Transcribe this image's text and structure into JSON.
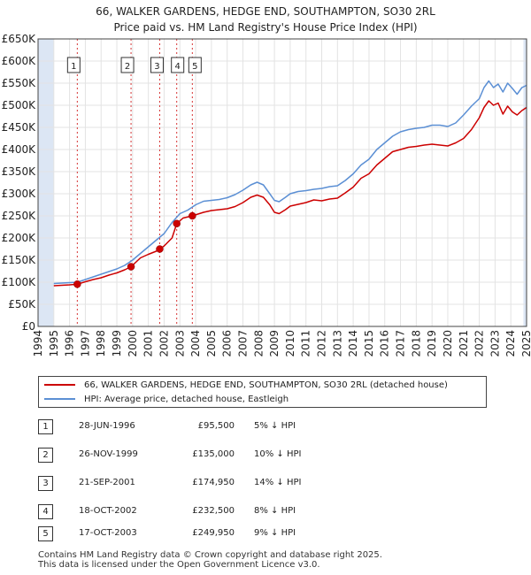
{
  "title_line1": "66, WALKER GARDENS, HEDGE END, SOUTHAMPTON, SO30 2RL",
  "title_line2": "Price paid vs. HM Land Registry's House Price Index (HPI)",
  "colors": {
    "property": "#cc0000",
    "hpi": "#5b8fd4",
    "shade": "#dce6f4",
    "grid": "#e3e3e3"
  },
  "legend": {
    "property_label": "66, WALKER GARDENS, HEDGE END, SOUTHAMPTON, SO30 2RL (detached house)",
    "hpi_label": "HPI: Average price, detached house, Eastleigh"
  },
  "transactions": [
    {
      "num": "1",
      "date": "28-JUN-1996",
      "price": "£95,500",
      "hpi": "5% ↓ HPI"
    },
    {
      "num": "2",
      "date": "26-NOV-1999",
      "price": "£135,000",
      "hpi": "10% ↓ HPI"
    },
    {
      "num": "3",
      "date": "21-SEP-2001",
      "price": "£174,950",
      "hpi": "14% ↓ HPI"
    },
    {
      "num": "4",
      "date": "18-OCT-2002",
      "price": "£232,500",
      "hpi": "8% ↓ HPI"
    },
    {
      "num": "5",
      "date": "17-OCT-2003",
      "price": "£249,950",
      "hpi": "9% ↓ HPI"
    }
  ],
  "footer_line1": "Contains HM Land Registry data © Crown copyright and database right 2025.",
  "footer_line2": "This data is licensed under the Open Government Licence v3.0.",
  "chart_data": {
    "type": "line",
    "title": "Price paid vs. HM Land Registry's House Price Index (HPI)",
    "xlabel": "",
    "ylabel": "",
    "xlim": [
      1994,
      2025
    ],
    "ylim": [
      0,
      650000
    ],
    "grid": true,
    "legend_position": "below",
    "y_ticks": [
      0,
      50000,
      100000,
      150000,
      200000,
      250000,
      300000,
      350000,
      400000,
      450000,
      500000,
      550000,
      600000,
      650000
    ],
    "y_tick_labels": [
      "£0",
      "£50K",
      "£100K",
      "£150K",
      "£200K",
      "£250K",
      "£300K",
      "£350K",
      "£400K",
      "£450K",
      "£500K",
      "£550K",
      "£600K",
      "£650K"
    ],
    "x_ticks": [
      1994,
      1995,
      1996,
      1997,
      1998,
      1999,
      2000,
      2001,
      2002,
      2003,
      2004,
      2005,
      2006,
      2007,
      2008,
      2009,
      2010,
      2011,
      2012,
      2013,
      2014,
      2015,
      2016,
      2017,
      2018,
      2019,
      2020,
      2021,
      2022,
      2023,
      2024,
      2025
    ],
    "x_tick_labels": [
      "1994",
      "1995",
      "1996",
      "1997",
      "1998",
      "1999",
      "2000",
      "2001",
      "2002",
      "2003",
      "2004",
      "2005",
      "2006",
      "2007",
      "2008",
      "2009",
      "2010",
      "2011",
      "2012",
      "2013",
      "2014",
      "2015",
      "2016",
      "2017",
      "2018",
      "2019",
      "2020",
      "2021",
      "2022",
      "2023",
      "2024",
      "2025"
    ],
    "shaded_ranges": [
      [
        1994,
        1995.0
      ],
      [
        2024.8,
        2025
      ]
    ],
    "sales": [
      {
        "label": "1",
        "x": 1996.49,
        "y": 95500
      },
      {
        "label": "2",
        "x": 1999.9,
        "y": 135000
      },
      {
        "label": "3",
        "x": 2001.72,
        "y": 174950
      },
      {
        "label": "4",
        "x": 2002.8,
        "y": 232500
      },
      {
        "label": "5",
        "x": 2003.79,
        "y": 249950
      }
    ],
    "series": [
      {
        "name": "66, WALKER GARDENS, HEDGE END, SOUTHAMPTON, SO30 2RL (detached house)",
        "x": [
          1995.0,
          1995.5,
          1996.0,
          1996.49,
          1997.0,
          1997.5,
          1998.0,
          1998.5,
          1999.0,
          1999.5,
          1999.9,
          2000.5,
          2001.0,
          2001.5,
          2001.72,
          2002.0,
          2002.5,
          2002.8,
          2003.2,
          2003.79,
          2004.5,
          2005.0,
          2005.5,
          2006.0,
          2006.5,
          2007.0,
          2007.5,
          2007.9,
          2008.3,
          2008.7,
          2009.0,
          2009.3,
          2009.7,
          2010.0,
          2010.5,
          2011.0,
          2011.5,
          2012.0,
          2012.5,
          2013.0,
          2013.5,
          2014.0,
          2014.5,
          2015.0,
          2015.5,
          2016.0,
          2016.5,
          2017.0,
          2017.5,
          2018.0,
          2018.5,
          2019.0,
          2019.5,
          2020.0,
          2020.5,
          2021.0,
          2021.5,
          2022.0,
          2022.3,
          2022.6,
          2022.9,
          2023.2,
          2023.5,
          2023.8,
          2024.1,
          2024.4,
          2024.7,
          2025.0
        ],
        "y": [
          92000,
          93000,
          94000,
          95500,
          101000,
          106000,
          110000,
          116000,
          121000,
          128000,
          135000,
          155000,
          163000,
          170000,
          174950,
          182000,
          200000,
          232500,
          245000,
          249950,
          258000,
          262000,
          264000,
          266000,
          271000,
          280000,
          292000,
          297000,
          292000,
          275000,
          258000,
          255000,
          264000,
          272000,
          276000,
          280000,
          286000,
          284000,
          288000,
          290000,
          302000,
          315000,
          335000,
          345000,
          365000,
          380000,
          395000,
          400000,
          405000,
          407000,
          410000,
          412000,
          410000,
          408000,
          415000,
          425000,
          445000,
          472000,
          495000,
          510000,
          500000,
          505000,
          480000,
          498000,
          485000,
          478000,
          488000,
          495000
        ]
      },
      {
        "name": "HPI: Average price, detached house, Eastleigh",
        "x": [
          1995.0,
          1995.5,
          1996.0,
          1996.5,
          1997.0,
          1997.5,
          1998.0,
          1998.5,
          1999.0,
          1999.5,
          2000.0,
          2000.5,
          2001.0,
          2001.5,
          2002.0,
          2002.5,
          2003.0,
          2003.5,
          2004.0,
          2004.5,
          2005.0,
          2005.5,
          2006.0,
          2006.5,
          2007.0,
          2007.5,
          2007.9,
          2008.3,
          2008.7,
          2009.0,
          2009.3,
          2009.7,
          2010.0,
          2010.5,
          2011.0,
          2011.5,
          2012.0,
          2012.5,
          2013.0,
          2013.5,
          2014.0,
          2014.5,
          2015.0,
          2015.5,
          2016.0,
          2016.5,
          2017.0,
          2017.5,
          2018.0,
          2018.5,
          2019.0,
          2019.5,
          2020.0,
          2020.5,
          2021.0,
          2021.5,
          2022.0,
          2022.3,
          2022.6,
          2022.9,
          2023.2,
          2023.5,
          2023.8,
          2024.1,
          2024.4,
          2024.7,
          2025.0
        ],
        "y": [
          97000,
          98000,
          99000,
          100000,
          106000,
          112000,
          118000,
          124000,
          130000,
          138000,
          150000,
          165000,
          180000,
          195000,
          210000,
          235000,
          255000,
          263000,
          275000,
          283000,
          285000,
          287000,
          291000,
          298000,
          308000,
          320000,
          326000,
          320000,
          300000,
          285000,
          282000,
          292000,
          300000,
          305000,
          307000,
          310000,
          312000,
          316000,
          318000,
          330000,
          345000,
          365000,
          378000,
          400000,
          415000,
          430000,
          440000,
          445000,
          448000,
          450000,
          455000,
          455000,
          452000,
          460000,
          478000,
          498000,
          515000,
          540000,
          555000,
          540000,
          548000,
          530000,
          550000,
          538000,
          525000,
          540000,
          545000
        ]
      }
    ]
  }
}
